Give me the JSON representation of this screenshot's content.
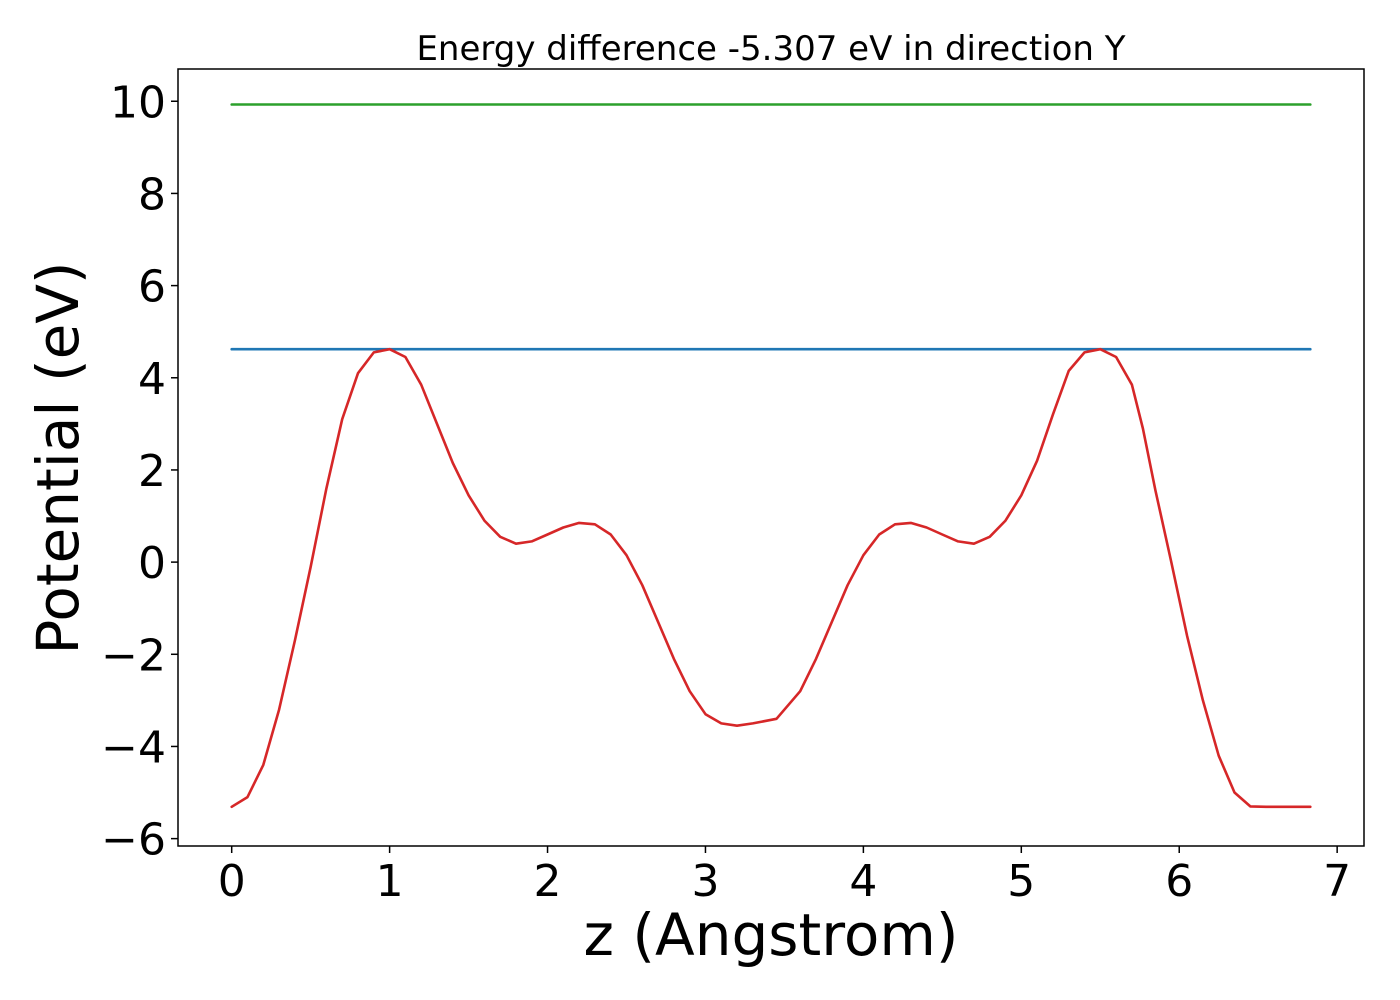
{
  "chart_data": {
    "type": "line",
    "title": "Energy difference -5.307 eV in direction Y",
    "xlabel": "z (Angstrom)",
    "ylabel": "Potential (eV)",
    "xlim": [
      -0.34,
      7.17
    ],
    "ylim": [
      -6.16,
      10.7
    ],
    "xticks": [
      0,
      1,
      2,
      3,
      4,
      5,
      6,
      7
    ],
    "yticks": [
      -6,
      -4,
      -2,
      0,
      2,
      4,
      6,
      8,
      10
    ],
    "xtick_labels": [
      "0",
      "1",
      "2",
      "3",
      "4",
      "5",
      "6",
      "7"
    ],
    "ytick_labels": [
      "−6",
      "−4",
      "−2",
      "0",
      "2",
      "4",
      "6",
      "8",
      "10"
    ],
    "grid": false,
    "legend": "none",
    "series": [
      {
        "color": "#2ca02c",
        "x": [
          0,
          6.83
        ],
        "y": [
          9.93,
          9.93
        ]
      },
      {
        "color": "#1f77b4",
        "x": [
          0,
          6.83
        ],
        "y": [
          4.62,
          4.62
        ]
      },
      {
        "color": "#d62728",
        "x": [
          0,
          0.1,
          0.2,
          0.3,
          0.4,
          0.5,
          0.6,
          0.7,
          0.8,
          0.9,
          1.0,
          1.1,
          1.2,
          1.3,
          1.4,
          1.5,
          1.6,
          1.7,
          1.8,
          1.9,
          2.0,
          2.1,
          2.2,
          2.3,
          2.4,
          2.5,
          2.6,
          2.7,
          2.8,
          2.9,
          3.0,
          3.1,
          3.2,
          3.3,
          3.45,
          3.6,
          3.7,
          3.8,
          3.9,
          4.0,
          4.1,
          4.2,
          4.3,
          4.4,
          4.5,
          4.6,
          4.7,
          4.8,
          4.9,
          5.0,
          5.1,
          5.2,
          5.3,
          5.4,
          5.5,
          5.6,
          5.7,
          5.77,
          5.85,
          5.95,
          6.05,
          6.15,
          6.25,
          6.35,
          6.45,
          6.55,
          6.65,
          6.75,
          6.83
        ],
        "y": [
          -5.31,
          -5.1,
          -4.4,
          -3.2,
          -1.7,
          -0.1,
          1.6,
          3.1,
          4.1,
          4.55,
          4.62,
          4.45,
          3.85,
          3.0,
          2.15,
          1.45,
          0.9,
          0.55,
          0.4,
          0.45,
          0.6,
          0.75,
          0.85,
          0.82,
          0.6,
          0.15,
          -0.5,
          -1.3,
          -2.1,
          -2.8,
          -3.3,
          -3.5,
          -3.55,
          -3.5,
          -3.4,
          -2.8,
          -2.1,
          -1.3,
          -0.5,
          0.15,
          0.6,
          0.82,
          0.85,
          0.75,
          0.6,
          0.45,
          0.4,
          0.55,
          0.9,
          1.45,
          2.2,
          3.2,
          4.15,
          4.55,
          4.62,
          4.45,
          3.85,
          2.9,
          1.55,
          0.0,
          -1.6,
          -3.0,
          -4.2,
          -5.0,
          -5.3,
          -5.31,
          -5.31,
          -5.31,
          -5.31
        ]
      }
    ]
  }
}
